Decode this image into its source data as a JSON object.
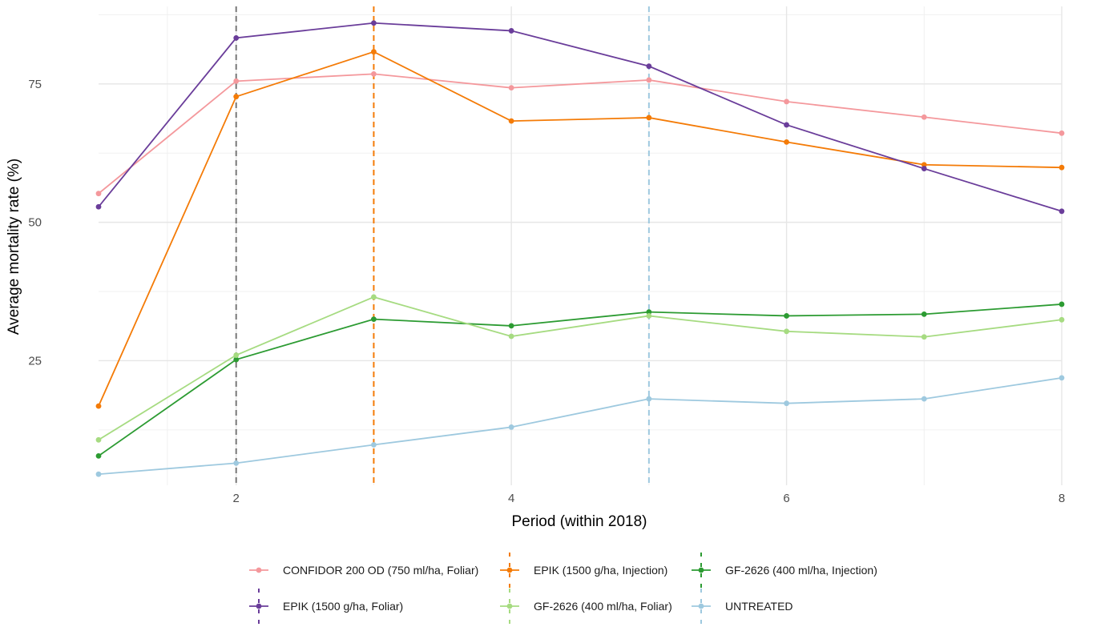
{
  "chart_data": {
    "type": "line",
    "title": "",
    "xlabel": "Period (within 2018)",
    "ylabel": "Average mortality rate (%)",
    "x": [
      1,
      2,
      3,
      4,
      5,
      6,
      7,
      8
    ],
    "xlim": [
      1,
      8
    ],
    "ylim": [
      2.5,
      89
    ],
    "xticks": [
      2,
      4,
      6,
      8
    ],
    "yticks": [
      25,
      50,
      75
    ],
    "grid": true,
    "legend_position": "bottom",
    "colors": {
      "confidor": "#F4989C",
      "epik_injection": "#F47B07",
      "gf_injection": "#2C9B32",
      "epik_foliar": "#6A3D9A",
      "gf_foliar": "#A6DB81",
      "untreated": "#9EC9DF",
      "vline_gray": "#777777"
    },
    "series": [
      {
        "key": "confidor",
        "name": "CONFIDOR 200 OD (750 ml/ha, Foliar)",
        "values": [
          55.2,
          75.5,
          76.8,
          74.3,
          75.7,
          71.8,
          69.0,
          66.1
        ]
      },
      {
        "key": "epik_injection",
        "name": "EPIK (1500 g/ha, Injection)",
        "values": [
          16.8,
          72.7,
          80.8,
          68.3,
          68.9,
          64.5,
          60.4,
          59.9
        ]
      },
      {
        "key": "gf_injection",
        "name": "GF-2626 (400 ml/ha, Injection)",
        "values": [
          7.8,
          25.2,
          32.5,
          31.3,
          33.8,
          33.1,
          33.4,
          35.2
        ]
      },
      {
        "key": "epik_foliar",
        "name": "EPIK (1500 g/ha, Foliar)",
        "values": [
          52.8,
          83.3,
          86.0,
          84.6,
          78.2,
          67.6,
          59.7,
          52.0
        ]
      },
      {
        "key": "gf_foliar",
        "name": "GF-2626 (400 ml/ha, Foliar)",
        "values": [
          10.7,
          26.0,
          36.5,
          29.4,
          33.1,
          30.3,
          29.3,
          32.4
        ]
      },
      {
        "key": "untreated",
        "name": "UNTREATED",
        "values": [
          4.5,
          6.5,
          9.8,
          13.0,
          18.1,
          17.3,
          18.1,
          21.9
        ]
      }
    ],
    "vlines": [
      {
        "x": 2,
        "color_key": "vline_gray"
      },
      {
        "x": 3,
        "color_key": "epik_injection"
      },
      {
        "x": 5,
        "color_key": "untreated"
      }
    ],
    "legend": [
      {
        "series": "confidor",
        "vline": false
      },
      {
        "series": "epik_injection",
        "vline": true
      },
      {
        "series": "gf_injection",
        "vline": true
      },
      {
        "series": "epik_foliar",
        "vline": true,
        "vline_color_key": "epik_foliar"
      },
      {
        "series": "gf_foliar",
        "vline": true
      },
      {
        "series": "untreated",
        "vline": true
      }
    ]
  }
}
